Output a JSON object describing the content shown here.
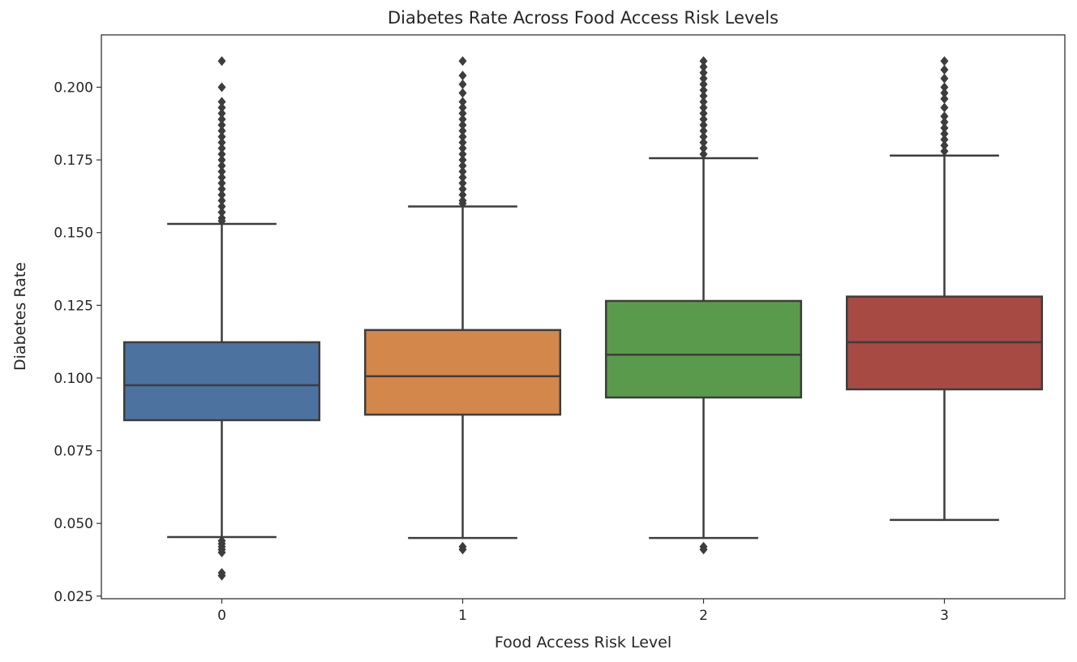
{
  "chart_data": {
    "type": "box",
    "title": "Diabetes Rate Across Food Access Risk Levels",
    "xlabel": "Food Access Risk Level",
    "ylabel": "Diabetes Rate",
    "ylim": [
      0.0241,
      0.218
    ],
    "yticks": [
      "0.025",
      "0.050",
      "0.075",
      "0.100",
      "0.125",
      "0.150",
      "0.175",
      "0.200"
    ],
    "grid": false,
    "categories": [
      "0",
      "1",
      "2",
      "3"
    ],
    "boxes": [
      {
        "category": "0",
        "color": "#4c72a0",
        "whisker_low": 0.0453,
        "q1": 0.0855,
        "median": 0.0975,
        "q3": 0.1123,
        "whisker_high": 0.153,
        "outliers": [
          0.209,
          0.2,
          0.195,
          0.193,
          0.191,
          0.189,
          0.187,
          0.185,
          0.183,
          0.181,
          0.179,
          0.177,
          0.175,
          0.173,
          0.171,
          0.169,
          0.167,
          0.165,
          0.163,
          0.161,
          0.159,
          0.157,
          0.155,
          0.154,
          0.044,
          0.043,
          0.042,
          0.041,
          0.04,
          0.033,
          0.032
        ]
      },
      {
        "category": "1",
        "color": "#d3874a",
        "whisker_low": 0.045,
        "q1": 0.0874,
        "median": 0.1006,
        "q3": 0.1165,
        "whisker_high": 0.159,
        "outliers": [
          0.209,
          0.204,
          0.201,
          0.198,
          0.195,
          0.193,
          0.191,
          0.189,
          0.187,
          0.185,
          0.183,
          0.181,
          0.179,
          0.177,
          0.175,
          0.173,
          0.171,
          0.169,
          0.167,
          0.165,
          0.163,
          0.161,
          0.16,
          0.042,
          0.041
        ]
      },
      {
        "category": "2",
        "color": "#5a9a4d",
        "whisker_low": 0.045,
        "q1": 0.0933,
        "median": 0.108,
        "q3": 0.1265,
        "whisker_high": 0.1756,
        "outliers": [
          0.209,
          0.207,
          0.205,
          0.203,
          0.201,
          0.199,
          0.197,
          0.195,
          0.193,
          0.191,
          0.189,
          0.187,
          0.185,
          0.183,
          0.181,
          0.179,
          0.177,
          0.042,
          0.041
        ]
      },
      {
        "category": "3",
        "color": "#a84a44",
        "whisker_low": 0.0512,
        "q1": 0.0961,
        "median": 0.1123,
        "q3": 0.128,
        "whisker_high": 0.1765,
        "outliers": [
          0.209,
          0.206,
          0.203,
          0.2,
          0.198,
          0.196,
          0.193,
          0.19,
          0.188,
          0.186,
          0.184,
          0.182,
          0.18,
          0.178
        ]
      }
    ]
  }
}
